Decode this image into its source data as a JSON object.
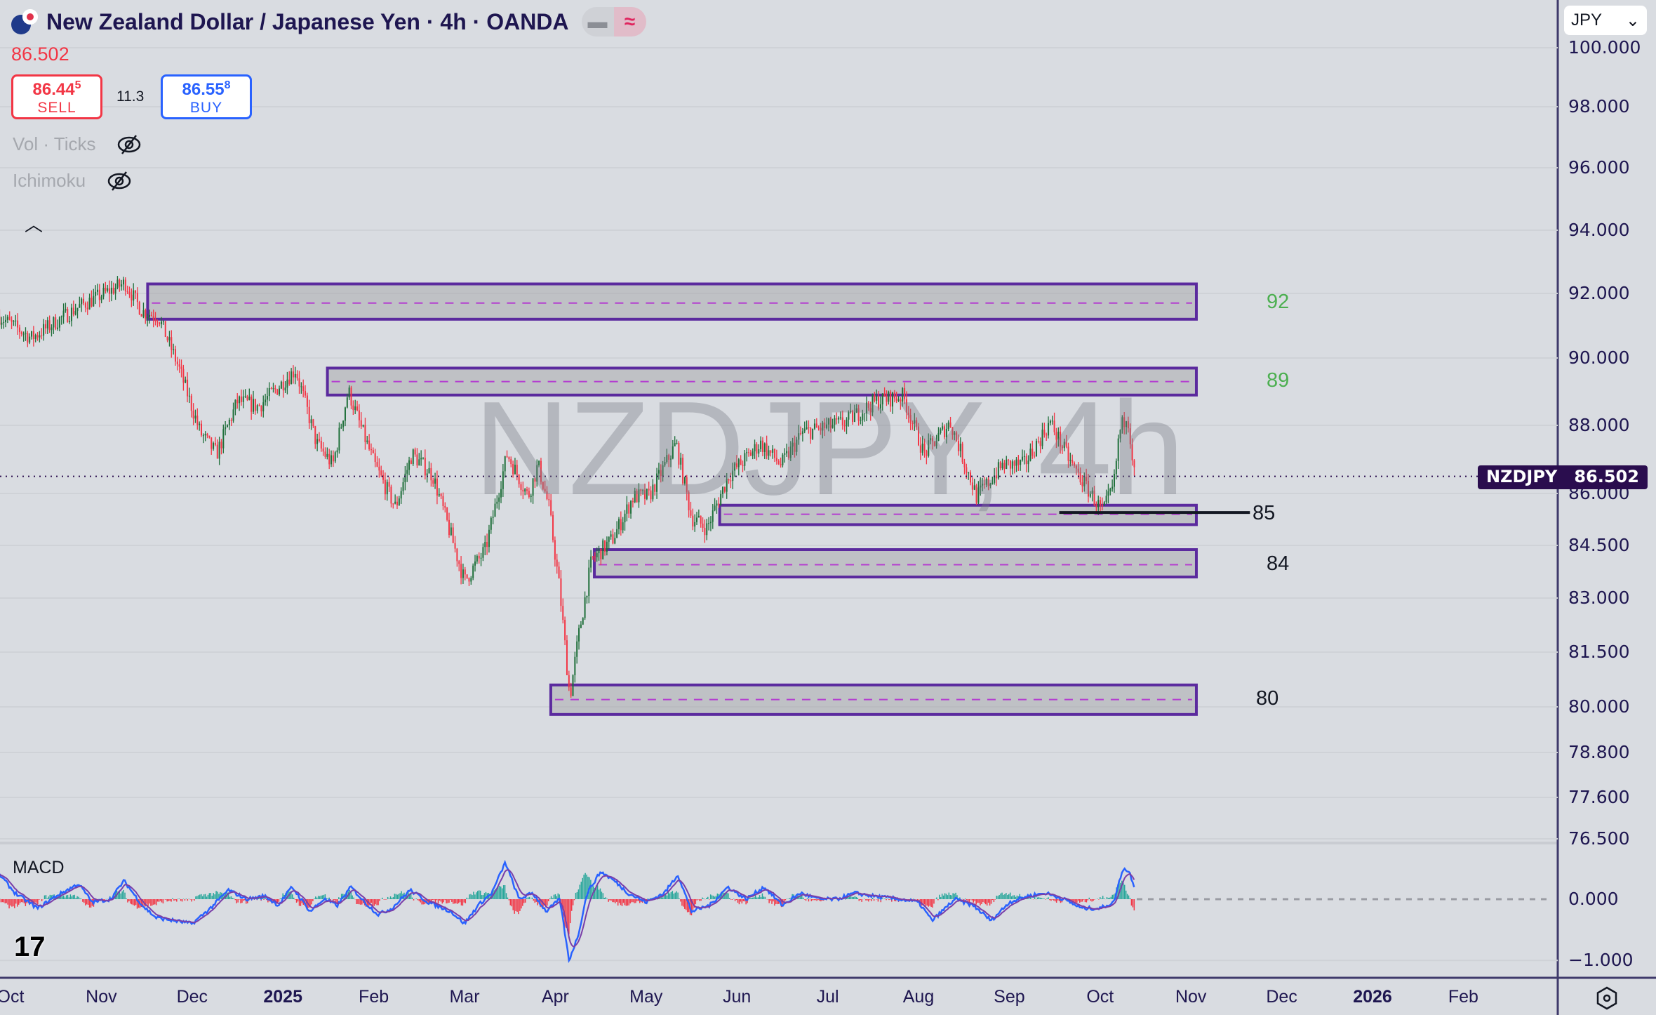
{
  "header": {
    "title": "New Zealand Dollar / Japanese Yen · 4h · OANDA",
    "last_price": "86.502",
    "sell": {
      "price": "86.44",
      "price_sup": "5",
      "label": "SELL"
    },
    "buy": {
      "price": "86.55",
      "price_sup": "8",
      "label": "BUY"
    },
    "spread": "11.3",
    "pill_icons": [
      "minus-icon",
      "wave-icon"
    ]
  },
  "indicators": [
    {
      "label": "Vol · Ticks",
      "icon": "eye-off-icon"
    },
    {
      "label": "Ichimoku",
      "icon": "eye-off-icon"
    }
  ],
  "watermark": "NZDJPY, 4h",
  "currency_select": "JPY",
  "price_tag": {
    "symbol": "NZDJPY",
    "value": "86.502"
  },
  "macd_label": "MACD",
  "colors": {
    "up": "#1f6f3a",
    "down": "#f23645",
    "zone_border": "#5b2a9e",
    "zone_mid": "#b43fd0",
    "macd": "#2962ff",
    "signal": "#7a3ea8"
  },
  "chart_data": [
    {
      "type": "candlestick",
      "title": "NZDJPY 4h",
      "y_ticks": [
        "100.000",
        "98.000",
        "96.000",
        "94.000",
        "92.000",
        "90.000",
        "88.000",
        "86.000",
        "84.500",
        "83.000",
        "81.500",
        "80.000",
        "78.800",
        "77.600",
        "76.500"
      ],
      "x_ticks": [
        {
          "label": "Oct",
          "t": 0
        },
        {
          "label": "Nov",
          "t": 1
        },
        {
          "label": "Dec",
          "t": 2
        },
        {
          "label": "2025",
          "t": 3,
          "bold": true
        },
        {
          "label": "Feb",
          "t": 4
        },
        {
          "label": "Mar",
          "t": 5
        },
        {
          "label": "Apr",
          "t": 6
        },
        {
          "label": "May",
          "t": 7
        },
        {
          "label": "Jun",
          "t": 8
        },
        {
          "label": "Jul",
          "t": 9
        },
        {
          "label": "Aug",
          "t": 10
        },
        {
          "label": "Sep",
          "t": 11
        },
        {
          "label": "Oct",
          "t": 12
        },
        {
          "label": "Nov",
          "t": 13
        },
        {
          "label": "Dec",
          "t": 14
        },
        {
          "label": "2026",
          "t": 15,
          "bold": true
        },
        {
          "label": "Feb",
          "t": 16
        }
      ],
      "x_unit": "months since Oct 2024",
      "price_path": [
        [
          -0.12,
          91.28
        ],
        [
          0.23,
          90.62
        ],
        [
          0.76,
          91.6
        ],
        [
          1.26,
          92.33
        ],
        [
          1.45,
          91.44
        ],
        [
          1.63,
          91.28
        ],
        [
          1.86,
          89.66
        ],
        [
          2.09,
          87.78
        ],
        [
          2.27,
          87.16
        ],
        [
          2.5,
          88.72
        ],
        [
          2.73,
          88.56
        ],
        [
          2.91,
          89.03
        ],
        [
          3.14,
          89.66
        ],
        [
          3.37,
          87.47
        ],
        [
          3.55,
          86.84
        ],
        [
          3.72,
          89.03
        ],
        [
          3.84,
          88.09
        ],
        [
          4.01,
          86.84
        ],
        [
          4.24,
          85.6
        ],
        [
          4.42,
          87.16
        ],
        [
          4.65,
          86.53
        ],
        [
          5.0,
          83.48
        ],
        [
          5.23,
          84.38
        ],
        [
          5.47,
          87.16
        ],
        [
          5.7,
          85.91
        ],
        [
          5.81,
          86.84
        ],
        [
          5.93,
          85.6
        ],
        [
          6.05,
          83.18
        ],
        [
          6.16,
          80.26
        ],
        [
          6.26,
          82.0
        ],
        [
          6.4,
          84.08
        ],
        [
          6.63,
          84.68
        ],
        [
          6.86,
          85.91
        ],
        [
          7.03,
          85.91
        ],
        [
          7.33,
          87.47
        ],
        [
          7.5,
          85.3
        ],
        [
          7.67,
          85.0
        ],
        [
          7.91,
          86.53
        ],
        [
          8.26,
          87.47
        ],
        [
          8.49,
          86.84
        ],
        [
          8.72,
          87.78
        ],
        [
          9.19,
          88.09
        ],
        [
          9.53,
          88.72
        ],
        [
          9.83,
          88.87
        ],
        [
          10.06,
          87.16
        ],
        [
          10.35,
          88.09
        ],
        [
          10.64,
          85.91
        ],
        [
          10.93,
          86.84
        ],
        [
          11.16,
          86.84
        ],
        [
          11.45,
          88.09
        ],
        [
          11.69,
          86.84
        ],
        [
          12.03,
          85.45
        ],
        [
          12.15,
          86.22
        ],
        [
          12.21,
          87.78
        ],
        [
          12.3,
          88.4
        ],
        [
          12.38,
          86.5
        ]
      ],
      "last": 86.502,
      "zones": [
        {
          "label": "92",
          "label_color": "#4caf50",
          "t_start": 1.51,
          "price_top": 92.3,
          "price_bottom": 91.2,
          "mid": 91.7
        },
        {
          "label": "89",
          "label_color": "#4caf50",
          "t_start": 3.49,
          "price_top": 89.7,
          "price_bottom": 88.9,
          "mid": 89.3
        },
        {
          "label": "85",
          "label_color": "#131722",
          "t_start": 7.81,
          "price_top": 85.66,
          "price_bottom": 85.1,
          "mid": 85.4
        },
        {
          "label": "84",
          "label_color": "#131722",
          "t_start": 6.43,
          "price_top": 84.38,
          "price_bottom": 83.6,
          "mid": 83.95
        },
        {
          "label": "80",
          "label_color": "#131722",
          "t_start": 5.95,
          "price_top": 80.6,
          "price_bottom": 79.8,
          "mid": 80.2
        }
      ],
      "zones_t_end": 13.06,
      "horizontal_line": {
        "price": 85.45,
        "t_start": 11.55,
        "t_end": 13.65
      }
    },
    {
      "type": "line",
      "title": "MACD",
      "y_ticks": [
        "0.000",
        "−1.000"
      ],
      "macd_path": [
        [
          -0.12,
          0.4
        ],
        [
          0.05,
          0.1
        ],
        [
          0.3,
          -0.15
        ],
        [
          0.5,
          0.05
        ],
        [
          0.75,
          0.25
        ],
        [
          0.9,
          -0.05
        ],
        [
          1.1,
          0.0
        ],
        [
          1.25,
          0.3
        ],
        [
          1.45,
          -0.1
        ],
        [
          1.6,
          -0.3
        ],
        [
          1.8,
          -0.35
        ],
        [
          2.0,
          -0.4
        ],
        [
          2.2,
          -0.15
        ],
        [
          2.4,
          0.15
        ],
        [
          2.6,
          0.0
        ],
        [
          2.8,
          0.05
        ],
        [
          2.95,
          -0.1
        ],
        [
          3.1,
          0.2
        ],
        [
          3.3,
          -0.2
        ],
        [
          3.45,
          0.0
        ],
        [
          3.6,
          -0.1
        ],
        [
          3.75,
          0.2
        ],
        [
          3.9,
          -0.05
        ],
        [
          4.05,
          -0.25
        ],
        [
          4.2,
          -0.15
        ],
        [
          4.4,
          0.15
        ],
        [
          4.6,
          -0.05
        ],
        [
          4.85,
          -0.2
        ],
        [
          5.0,
          -0.4
        ],
        [
          5.15,
          -0.1
        ],
        [
          5.3,
          0.1
        ],
        [
          5.45,
          0.6
        ],
        [
          5.6,
          0.0
        ],
        [
          5.75,
          0.1
        ],
        [
          5.9,
          -0.2
        ],
        [
          6.05,
          0.0
        ],
        [
          6.15,
          -1.0
        ],
        [
          6.25,
          -0.6
        ],
        [
          6.35,
          0.1
        ],
        [
          6.5,
          0.45
        ],
        [
          6.65,
          0.3
        ],
        [
          6.8,
          0.1
        ],
        [
          7.0,
          -0.05
        ],
        [
          7.2,
          0.1
        ],
        [
          7.35,
          0.4
        ],
        [
          7.5,
          -0.2
        ],
        [
          7.7,
          -0.1
        ],
        [
          7.9,
          0.2
        ],
        [
          8.1,
          0.0
        ],
        [
          8.3,
          0.2
        ],
        [
          8.5,
          -0.1
        ],
        [
          8.7,
          0.1
        ],
        [
          8.9,
          0.0
        ],
        [
          9.1,
          0.0
        ],
        [
          9.3,
          0.1
        ],
        [
          9.5,
          0.05
        ],
        [
          9.8,
          0.0
        ],
        [
          10.0,
          -0.05
        ],
        [
          10.15,
          -0.35
        ],
        [
          10.4,
          0.0
        ],
        [
          10.6,
          -0.1
        ],
        [
          10.8,
          -0.35
        ],
        [
          11.0,
          -0.05
        ],
        [
          11.2,
          0.05
        ],
        [
          11.4,
          0.1
        ],
        [
          11.6,
          0.0
        ],
        [
          11.8,
          -0.15
        ],
        [
          12.0,
          -0.15
        ],
        [
          12.15,
          -0.05
        ],
        [
          12.25,
          0.5
        ],
        [
          12.32,
          0.45
        ],
        [
          12.38,
          0.2
        ]
      ]
    }
  ]
}
